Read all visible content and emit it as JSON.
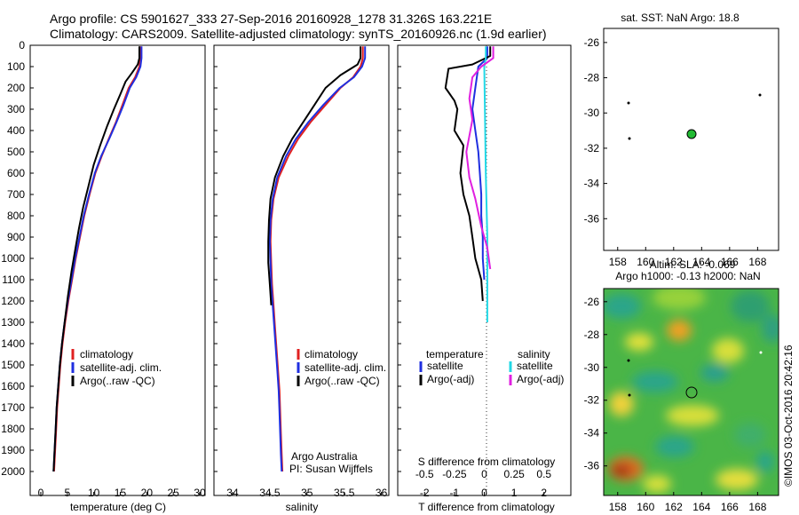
{
  "header": {
    "line1": "Argo profile: CS 5901627_333 27-Sep-2016 20160928_1278 31.326S 163.221E",
    "line2": "Climatology: CARS2009. Satellite-adjusted climatology: synTS_20160926.nc (1.9d earlier)"
  },
  "depth_ticks": [
    "0",
    "100",
    "200",
    "300",
    "400",
    "500",
    "600",
    "700",
    "800",
    "900",
    "1000",
    "1100",
    "1200",
    "1300",
    "1400",
    "1500",
    "1600",
    "1700",
    "1800",
    "1900",
    "2000"
  ],
  "colors": {
    "climatology": "#e02020",
    "satellite": "#1f2fe0",
    "argo": "#000000",
    "sal_satellite": "#22d8e6",
    "sal_argo": "#e020e0",
    "marker_green": "#22bb33"
  },
  "panel_temp": {
    "xlabel": "temperature (deg C)",
    "xticks": [
      "0",
      "5",
      "10",
      "15",
      "20",
      "25",
      "30"
    ],
    "legend": [
      "climatology",
      "satellite-adj. clim.",
      "Argo(..raw -QC)"
    ]
  },
  "panel_sal": {
    "xlabel": "salinity",
    "xticks": [
      "34",
      "34.5",
      "35",
      "35.5",
      "36"
    ],
    "legend": [
      "climatology",
      "satellite-adj. clim.",
      "Argo(..raw -QC)"
    ],
    "credit1": "Argo Australia",
    "credit2": "PI: Susan Wijffels"
  },
  "panel_diff": {
    "top_xticks": [
      "-0.5",
      "-0.25",
      "0",
      "0.25",
      "0.5"
    ],
    "bottom_xticks": [
      "-2",
      "-1",
      "0",
      "1",
      "2"
    ],
    "top_xlabel": "S difference from climatology",
    "bottom_xlabel": "T difference from climatology",
    "legend_temp_title": "temperature",
    "legend_temp_items": [
      "satellite",
      "Argo(-adj)"
    ],
    "legend_sal_title": "salinity",
    "legend_sal_items": [
      "satellite",
      "Argo(-adj)"
    ]
  },
  "map_sst": {
    "title": "sat. SST: NaN Argo: 18.8",
    "yticks": [
      "-26",
      "-28",
      "-30",
      "-32",
      "-34",
      "-36"
    ],
    "xticks": [
      "158",
      "160",
      "162",
      "164",
      "166",
      "168"
    ]
  },
  "map_sla": {
    "title1": "Altim. SLA: -0.069",
    "title2": "Argo h1000: -0.13 h2000: NaN",
    "yticks": [
      "-26",
      "-28",
      "-30",
      "-32",
      "-34",
      "-36"
    ],
    "xticks": [
      "158",
      "160",
      "162",
      "164",
      "166",
      "168"
    ]
  },
  "watermark": "©IMOS 03-Oct-2016 20:42:16",
  "chart_data": [
    {
      "type": "line",
      "xlabel": "temperature (deg C)",
      "ylabel": "",
      "xlim": [
        -2,
        31
      ],
      "ylim": [
        2100,
        0
      ],
      "series": [
        {
          "name": "climatology",
          "color": "#e02020",
          "points": [
            [
              18.8,
              5
            ],
            [
              18.8,
              60
            ],
            [
              18.6,
              100
            ],
            [
              17.8,
              150
            ],
            [
              16.6,
              200
            ],
            [
              15.4,
              280
            ],
            [
              14.2,
              360
            ],
            [
              12.8,
              440
            ],
            [
              11.5,
              520
            ],
            [
              10.3,
              600
            ],
            [
              9.2,
              700
            ],
            [
              8.2,
              800
            ],
            [
              7.4,
              900
            ],
            [
              6.6,
              1000
            ],
            [
              5.9,
              1100
            ],
            [
              5.2,
              1200
            ],
            [
              4.6,
              1300
            ],
            [
              4.1,
              1400
            ],
            [
              3.7,
              1500
            ],
            [
              3.4,
              1600
            ],
            [
              3.1,
              1700
            ],
            [
              2.9,
              1800
            ],
            [
              2.7,
              1900
            ],
            [
              2.5,
              2000
            ]
          ]
        },
        {
          "name": "satellite-adj. clim.",
          "color": "#1f2fe0",
          "points": [
            [
              19.0,
              5
            ],
            [
              19.0,
              60
            ],
            [
              18.8,
              100
            ],
            [
              18.0,
              150
            ],
            [
              16.8,
              200
            ],
            [
              15.6,
              280
            ],
            [
              14.3,
              360
            ],
            [
              12.9,
              440
            ],
            [
              11.4,
              520
            ],
            [
              10.2,
              600
            ],
            [
              9.1,
              700
            ],
            [
              8.1,
              800
            ],
            [
              7.3,
              900
            ],
            [
              6.5,
              1000
            ],
            [
              5.8,
              1100
            ],
            [
              5.1,
              1200
            ],
            [
              4.5,
              1300
            ],
            [
              4.0,
              1400
            ],
            [
              3.6,
              1500
            ],
            [
              3.3,
              1600
            ],
            [
              3.0,
              1700
            ],
            [
              2.8,
              1800
            ],
            [
              2.6,
              1900
            ],
            [
              2.4,
              2000
            ]
          ]
        },
        {
          "name": "Argo(..raw -QC)",
          "color": "#000000",
          "points": [
            [
              18.6,
              5
            ],
            [
              18.6,
              60
            ],
            [
              18.3,
              90
            ],
            [
              17.2,
              130
            ],
            [
              16.0,
              170
            ],
            [
              15.0,
              230
            ],
            [
              13.8,
              300
            ],
            [
              12.5,
              380
            ],
            [
              11.2,
              470
            ],
            [
              10.0,
              560
            ],
            [
              9.0,
              660
            ],
            [
              8.0,
              760
            ],
            [
              7.2,
              860
            ],
            [
              6.5,
              960
            ],
            [
              5.8,
              1060
            ],
            [
              5.1,
              1180
            ],
            [
              4.5,
              1300
            ],
            [
              4.0,
              1400
            ],
            [
              3.6,
              1500
            ],
            [
              3.3,
              1600
            ],
            [
              3.0,
              1700
            ],
            [
              2.8,
              1800
            ],
            [
              2.6,
              1900
            ],
            [
              2.4,
              2000
            ]
          ]
        }
      ]
    },
    {
      "type": "line",
      "xlabel": "salinity",
      "ylabel": "",
      "xlim": [
        33.75,
        36.1
      ],
      "ylim": [
        2100,
        0
      ],
      "series": [
        {
          "name": "climatology",
          "color": "#e02020",
          "points": [
            [
              35.75,
              5
            ],
            [
              35.75,
              60
            ],
            [
              35.72,
              100
            ],
            [
              35.62,
              150
            ],
            [
              35.45,
              200
            ],
            [
              35.25,
              280
            ],
            [
              35.05,
              360
            ],
            [
              34.88,
              440
            ],
            [
              34.75,
              520
            ],
            [
              34.62,
              620
            ],
            [
              34.55,
              720
            ],
            [
              34.52,
              820
            ],
            [
              34.51,
              920
            ],
            [
              34.52,
              1020
            ],
            [
              34.53,
              1120
            ],
            [
              34.55,
              1220
            ],
            [
              34.57,
              1320
            ],
            [
              34.59,
              1420
            ],
            [
              34.61,
              1520
            ],
            [
              34.63,
              1620
            ],
            [
              34.64,
              1720
            ],
            [
              34.65,
              1820
            ],
            [
              34.66,
              1920
            ],
            [
              34.67,
              2000
            ]
          ]
        },
        {
          "name": "satellite-adj. clim.",
          "color": "#1f2fe0",
          "points": [
            [
              35.78,
              5
            ],
            [
              35.78,
              60
            ],
            [
              35.74,
              100
            ],
            [
              35.63,
              150
            ],
            [
              35.44,
              200
            ],
            [
              35.22,
              280
            ],
            [
              35.02,
              360
            ],
            [
              34.85,
              440
            ],
            [
              34.72,
              520
            ],
            [
              34.6,
              620
            ],
            [
              34.54,
              720
            ],
            [
              34.51,
              820
            ],
            [
              34.5,
              920
            ],
            [
              34.51,
              1020
            ],
            [
              34.52,
              1120
            ],
            [
              34.54,
              1220
            ],
            [
              34.56,
              1320
            ],
            [
              34.58,
              1420
            ],
            [
              34.6,
              1520
            ],
            [
              34.62,
              1620
            ],
            [
              34.63,
              1720
            ],
            [
              34.64,
              1820
            ],
            [
              34.65,
              1920
            ],
            [
              34.66,
              2000
            ]
          ]
        },
        {
          "name": "Argo(..raw -QC)",
          "color": "#000000",
          "points": [
            [
              35.72,
              5
            ],
            [
              35.72,
              60
            ],
            [
              35.68,
              90
            ],
            [
              35.45,
              140
            ],
            [
              35.25,
              200
            ],
            [
              35.1,
              280
            ],
            [
              34.95,
              360
            ],
            [
              34.8,
              440
            ],
            [
              34.68,
              520
            ],
            [
              34.57,
              620
            ],
            [
              34.51,
              720
            ],
            [
              34.49,
              820
            ],
            [
              34.48,
              920
            ],
            [
              34.48,
              1020
            ],
            [
              34.5,
              1120
            ],
            [
              34.52,
              1220
            ]
          ]
        }
      ]
    },
    {
      "type": "line",
      "xlabel": "T difference from climatology",
      "ylabel": "",
      "xlim": [
        -2.9,
        2.9
      ],
      "ylim": [
        2100,
        0
      ],
      "series": [
        {
          "name": "temperature satellite",
          "color": "#1f2fe0",
          "points": [
            [
              0.1,
              5
            ],
            [
              0.1,
              60
            ],
            [
              -0.2,
              100
            ],
            [
              -0.3,
              200
            ],
            [
              -0.4,
              300
            ],
            [
              -0.3,
              400
            ],
            [
              -0.2,
              500
            ],
            [
              -0.15,
              600
            ],
            [
              -0.1,
              700
            ],
            [
              -0.1,
              800
            ],
            [
              -0.05,
              900
            ],
            [
              -0.05,
              1000
            ],
            [
              0,
              1100
            ]
          ]
        },
        {
          "name": "temperature Argo(-adj)",
          "color": "#000000",
          "points": [
            [
              0.2,
              5
            ],
            [
              0.2,
              50
            ],
            [
              -0.4,
              90
            ],
            [
              -1.2,
              110
            ],
            [
              -1.3,
              200
            ],
            [
              -1.0,
              260
            ],
            [
              -0.9,
              300
            ],
            [
              -1.0,
              400
            ],
            [
              -0.7,
              470
            ],
            [
              -0.8,
              600
            ],
            [
              -0.7,
              700
            ],
            [
              -0.5,
              800
            ],
            [
              -0.4,
              900
            ],
            [
              -0.3,
              1000
            ],
            [
              -0.1,
              1100
            ],
            [
              -0.05,
              1200
            ]
          ]
        },
        {
          "name": "salinity satellite",
          "color": "#22d8e6",
          "points": [
            [
              0.05,
              5
            ],
            [
              0.05,
              60
            ],
            [
              0.0,
              100
            ],
            [
              0.02,
              300
            ],
            [
              0.05,
              600
            ],
            [
              0.1,
              900
            ],
            [
              0.1,
              1200
            ],
            [
              0.1,
              1300
            ]
          ]
        },
        {
          "name": "salinity Argo(-adj)",
          "color": "#e020e0",
          "points": [
            [
              0.3,
              5
            ],
            [
              0.3,
              60
            ],
            [
              -0.1,
              100
            ],
            [
              -0.4,
              150
            ],
            [
              -0.5,
              250
            ],
            [
              -0.4,
              350
            ],
            [
              -0.6,
              500
            ],
            [
              -0.5,
              620
            ],
            [
              -0.3,
              720
            ],
            [
              -0.1,
              850
            ],
            [
              0.1,
              950
            ],
            [
              0.2,
              1050
            ]
          ]
        }
      ]
    }
  ]
}
